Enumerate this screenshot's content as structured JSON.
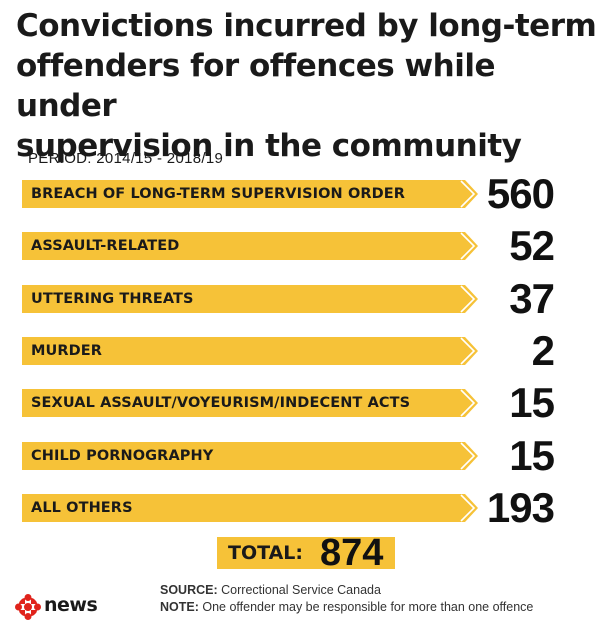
{
  "chart_data": {
    "type": "bar",
    "title": "Convictions incurred by long-term offenders for offences while under supervision in the community",
    "subtitle": "PERIOD: 2014/15 - 2018/19",
    "categories": [
      "BREACH OF LONG-TERM SUPERVISION ORDER",
      "ASSAULT-RELATED",
      "UTTERING THREATS",
      "MURDER",
      "SEXUAL ASSAULT/VOYEURISM/INDECENT ACTS",
      "CHILD PORNOGRAPHY",
      "ALL OTHERS"
    ],
    "values": [
      560,
      52,
      37,
      2,
      15,
      15,
      193
    ],
    "total_label": "TOTAL:",
    "total_value": 874,
    "xlabel": "",
    "ylabel": ""
  },
  "title_lines": [
    "Convictions incurred by long-term",
    "offenders for offences while under",
    "supervision in the community"
  ],
  "footer": {
    "source_key": "SOURCE:",
    "source_text": "Correctional Service Canada",
    "note_key": "NOTE:",
    "note_text": "One offender may be responsible for more than one offence"
  },
  "brand": {
    "logo_text": "news",
    "logo_icon": "cbc-gem-icon"
  },
  "colors": {
    "bar": "#f6c238",
    "text": "#1a1a1a",
    "logo_red": "#e0231b"
  }
}
